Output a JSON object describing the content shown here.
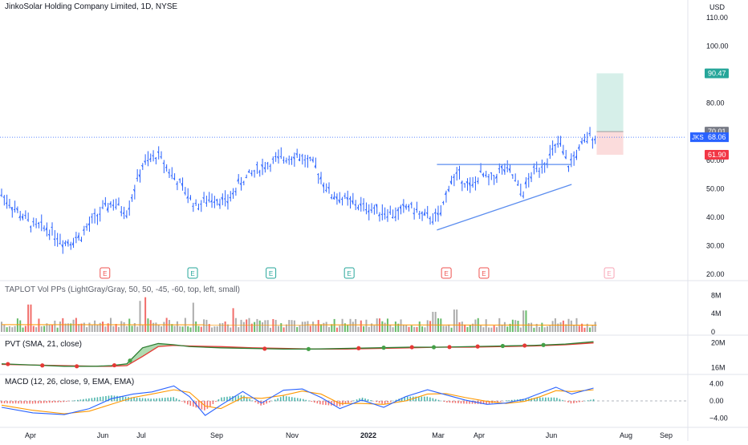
{
  "header": {
    "title": "JinkoSolar Holding Company Limited, 1D, NYSE",
    "currency": "USD"
  },
  "price_axis": {
    "ticks": [
      "110.00",
      "100.00",
      "90.00",
      "80.00",
      "70.00",
      "60.00",
      "50.00",
      "40.00",
      "30.00",
      "20.00"
    ],
    "labels": {
      "target": "90.47",
      "entry": "70.01",
      "symbol": "JKS",
      "last": "68.06",
      "stop": "61.90"
    }
  },
  "indicators": {
    "volume_title": "TAPLOT Vol PPs (LightGray/Gray, 50, 50, -45, -60, top, left, small)",
    "volume_ticks": [
      "8M",
      "4M",
      "0"
    ],
    "pvt_title": "PVT (SMA, 21, close)",
    "pvt_ticks": [
      "20M",
      "16M"
    ],
    "macd_title": "MACD (12, 26, close, 9, EMA, EMA)",
    "macd_ticks": [
      "4.00",
      "0.00",
      "−4.00"
    ]
  },
  "events": {
    "earnings_marker": "E",
    "earnings_months": [
      3.3,
      6.1,
      8.6,
      11.1,
      14.2,
      15.4,
      19.4
    ]
  },
  "time_axis": {
    "labels": [
      "Apr",
      "Jun",
      "Jul",
      "Sep",
      "Nov",
      "2022",
      "Mar",
      "Apr",
      "Jun",
      "Aug",
      "Sep"
    ]
  },
  "colors": {
    "bars": "#2962ff",
    "up": "#26a69a",
    "down": "#ef5350",
    "pvt_fill_up": "#4caf50",
    "pvt_fill_down": "#f23645",
    "macd_line": "#2962ff",
    "signal_line": "#ff9800",
    "target_zone": "#d6efe9",
    "stop_zone": "#fbdcdc",
    "trendline": "#5b8def"
  },
  "chart_data": {
    "type": "line",
    "price_ylim": [
      20,
      110
    ],
    "price_path": {
      "x": [
        0,
        0.5,
        1.0,
        1.5,
        2.0,
        2.5,
        3.0,
        3.5,
        4.0,
        4.5,
        5.0,
        5.5,
        5.8,
        6.2,
        6.8,
        7.2,
        7.6,
        8.2,
        8.8,
        9.4,
        10.0,
        10.5,
        11.0,
        11.4,
        11.8,
        12.2,
        12.6,
        13.0,
        13.5,
        14.0,
        14.3,
        14.6,
        15.0,
        15.3,
        15.6,
        16.0,
        16.3,
        16.6,
        17.0,
        17.4,
        17.8,
        18.1,
        18.4,
        18.6,
        18.8,
        19.0
      ],
      "y": [
        48,
        42,
        37,
        36,
        31,
        33,
        40,
        45,
        42,
        58,
        62,
        54,
        50,
        44,
        47,
        45,
        52,
        57,
        60,
        62,
        58,
        48,
        46,
        44,
        43,
        42,
        41,
        44,
        40,
        40,
        52,
        55,
        50,
        55,
        53,
        57,
        55,
        48,
        56,
        60,
        66,
        58,
        63,
        66,
        69,
        68.06
      ]
    },
    "levels": {
      "entry": 70.01,
      "target": 90.47,
      "stop": 61.9,
      "last": 68.06
    },
    "triangle": {
      "resistance": {
        "x": [
          13.9,
          18.2
        ],
        "y": [
          58.5,
          58.5
        ]
      },
      "support": {
        "x": [
          13.9,
          18.2
        ],
        "y": [
          35.5,
          51.5
        ]
      }
    },
    "volume_ylim": [
      0,
      10
    ],
    "volume_ma": [
      1.6,
      1.5
    ],
    "volume_spikes": {
      "x": [
        0.9,
        4.4,
        4.6,
        6.1,
        7.4,
        13.8,
        14.5,
        16.7
      ],
      "y": [
        6.0,
        6.8,
        7.6,
        6.4,
        5.2,
        4.4,
        4.9,
        4.7
      ]
    },
    "pvt_ylim": [
      15,
      21
    ],
    "pvt": {
      "x": [
        0,
        1,
        2,
        3,
        3.5,
        4.0,
        4.5,
        5.0,
        5.5,
        6.0,
        7.0,
        8.0,
        9.0,
        10.0,
        11.0,
        12.0,
        13.0,
        14.0,
        15.0,
        16.0,
        17.0,
        18.0,
        18.9
      ],
      "y": [
        16.6,
        16.4,
        16.2,
        16.2,
        16.3,
        16.6,
        19.2,
        19.9,
        19.7,
        19.4,
        19.2,
        19.1,
        19.0,
        19.0,
        19.1,
        19.2,
        19.3,
        19.3,
        19.4,
        19.5,
        19.6,
        19.8,
        20.2
      ],
      "sma": [
        16.5,
        16.4,
        16.3,
        16.2,
        16.2,
        16.3,
        17.8,
        19.4,
        19.6,
        19.5,
        19.4,
        19.2,
        19.1,
        19.0,
        19.0,
        19.1,
        19.2,
        19.3,
        19.3,
        19.4,
        19.5,
        19.7,
        20.0
      ]
    },
    "macd_ylim": [
      -6,
      6
    ],
    "macd": {
      "x": [
        0,
        1,
        2,
        2.8,
        3.5,
        4.2,
        4.8,
        5.5,
        6.0,
        6.5,
        7.0,
        7.7,
        8.3,
        9.0,
        9.6,
        10.2,
        10.8,
        11.5,
        12.2,
        12.9,
        13.6,
        14.2,
        14.8,
        15.5,
        16.1,
        16.7,
        17.2,
        17.7,
        18.2,
        18.9
      ],
      "line": [
        -1.5,
        -2.8,
        -3.2,
        -1.8,
        0.5,
        1.6,
        2.1,
        3.5,
        1.0,
        -3.4,
        -1.0,
        2.2,
        -0.5,
        2.5,
        2.8,
        0.8,
        -1.8,
        0.2,
        -1.5,
        1.0,
        2.6,
        1.4,
        0.2,
        -0.8,
        -0.5,
        0.4,
        1.8,
        3.2,
        1.6,
        3.0
      ],
      "signal": [
        -1.0,
        -2.2,
        -3.0,
        -2.4,
        -0.8,
        0.8,
        1.6,
        2.6,
        2.0,
        -1.2,
        -1.8,
        0.8,
        0.6,
        1.3,
        2.3,
        1.6,
        -0.6,
        -0.6,
        -0.8,
        0.0,
        1.6,
        1.7,
        0.8,
        -0.1,
        -0.6,
        -0.1,
        1.0,
        2.4,
        2.2,
        2.6
      ]
    }
  }
}
